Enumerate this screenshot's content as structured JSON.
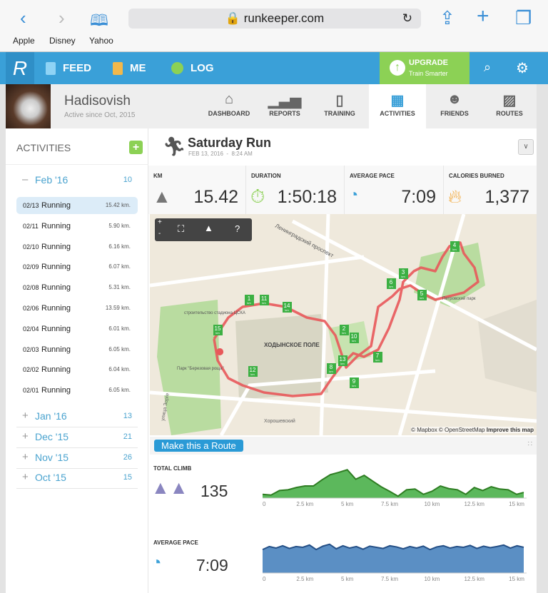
{
  "browser": {
    "url": "runkeeper.com",
    "bookmarks": [
      "Apple",
      "Disney",
      "Yahoo"
    ]
  },
  "nav": {
    "feed": "FEED",
    "me": "ME",
    "log": "LOG",
    "upgrade": "UPGRADE",
    "upgrade_sub": "Train Smarter"
  },
  "profile": {
    "name": "Hadisovish",
    "since": "Active since Oct, 2015"
  },
  "tabs": [
    "DASHBOARD",
    "REPORTS",
    "TRAINING",
    "ACTIVITIES",
    "FRIENDS",
    "ROUTES"
  ],
  "sidebar": {
    "title": "ACTIVITIES",
    "add": "+",
    "current_month": {
      "label": "Feb '16",
      "count": "10",
      "toggle": "–"
    },
    "activities": [
      {
        "date": "02/13",
        "type": "Running",
        "km": "15.42 km."
      },
      {
        "date": "02/11",
        "type": "Running",
        "km": "5.90 km."
      },
      {
        "date": "02/10",
        "type": "Running",
        "km": "6.16 km."
      },
      {
        "date": "02/09",
        "type": "Running",
        "km": "6.07 km."
      },
      {
        "date": "02/08",
        "type": "Running",
        "km": "5.31 km."
      },
      {
        "date": "02/06",
        "type": "Running",
        "km": "13.59 km."
      },
      {
        "date": "02/04",
        "type": "Running",
        "km": "6.01 km."
      },
      {
        "date": "02/03",
        "type": "Running",
        "km": "6.05 km."
      },
      {
        "date": "02/02",
        "type": "Running",
        "km": "6.04 km."
      },
      {
        "date": "02/01",
        "type": "Running",
        "km": "6.05 km."
      }
    ],
    "months": [
      {
        "label": "Jan '16",
        "count": "13"
      },
      {
        "label": "Dec '15",
        "count": "21"
      },
      {
        "label": "Nov '15",
        "count": "26"
      },
      {
        "label": "Oct '15",
        "count": "15"
      }
    ],
    "expand": "+"
  },
  "activity": {
    "title": "Saturday Run",
    "date": "FEB 13, 2016  -  8:24 AM",
    "stats": [
      {
        "label": "KM",
        "value": "15.42"
      },
      {
        "label": "DURATION",
        "value": "1:50:18"
      },
      {
        "label": "AVERAGE PACE",
        "value": "7:09"
      },
      {
        "label": "CALORIES BURNED",
        "value": "1,377"
      }
    ]
  },
  "map": {
    "labels": [
      "Ленинградский проспект",
      "ХОДЫНСКОЕ ПОЛЕ",
      "Петровский парк",
      "Парк \"Березовая роща\"",
      "строительство стадиона ЦСКА",
      "Хорошевский",
      "улица Зорге"
    ],
    "attribution": "© Mapbox © OpenStreetMap",
    "improve": "Improve this map",
    "markers": [
      "1",
      "2",
      "3",
      "4",
      "5",
      "6",
      "7",
      "8",
      "9",
      "10",
      "11",
      "12",
      "13",
      "14",
      "15"
    ],
    "marker_unit": "km",
    "controls": {
      "zoom_in": "+",
      "zoom_out": "-",
      "help": "?"
    },
    "route_color": "#e8585a"
  },
  "route_button": "Make this a Route",
  "charts": {
    "climb_label": "TOTAL CLIMB",
    "climb_value": "135",
    "pace_label": "AVERAGE PACE",
    "pace_value": "7:09"
  },
  "chart_data": [
    {
      "type": "area",
      "title": "TOTAL CLIMB",
      "color": "#5cb85c",
      "x_ticks": [
        "0",
        "2.5 km",
        "5 km",
        "7.5 km",
        "10 km",
        "12.5 km",
        "15 km"
      ],
      "xlim": [
        0,
        15.42
      ],
      "x": [
        0,
        0.5,
        1,
        1.5,
        2,
        2.5,
        3,
        3.5,
        4,
        4.5,
        5,
        5.5,
        6,
        6.5,
        7,
        7.5,
        8,
        8.5,
        9,
        9.5,
        10,
        10.5,
        11,
        11.5,
        12,
        12.5,
        13,
        13.5,
        14,
        14.5,
        15,
        15.42
      ],
      "values": [
        10,
        8,
        20,
        22,
        28,
        32,
        32,
        48,
        62,
        68,
        75,
        50,
        60,
        45,
        30,
        18,
        5,
        22,
        24,
        10,
        18,
        32,
        25,
        22,
        10,
        28,
        20,
        30,
        24,
        22,
        10,
        15
      ]
    },
    {
      "type": "area",
      "title": "AVERAGE PACE",
      "color": "#5b8fc4",
      "x_ticks": [
        "0",
        "2.5 km",
        "5 km",
        "7.5 km",
        "10 km",
        "12.5 km",
        "15 km"
      ],
      "xlim": [
        0,
        15.42
      ],
      "values": [
        62,
        70,
        66,
        72,
        65,
        70,
        68,
        74,
        62,
        71,
        76,
        64,
        72,
        66,
        70,
        63,
        71,
        68,
        65,
        72,
        69,
        64,
        70,
        66,
        71,
        62,
        69,
        72,
        66,
        70,
        68,
        73,
        65,
        71,
        67,
        70,
        74,
        66,
        72,
        68
      ]
    }
  ]
}
